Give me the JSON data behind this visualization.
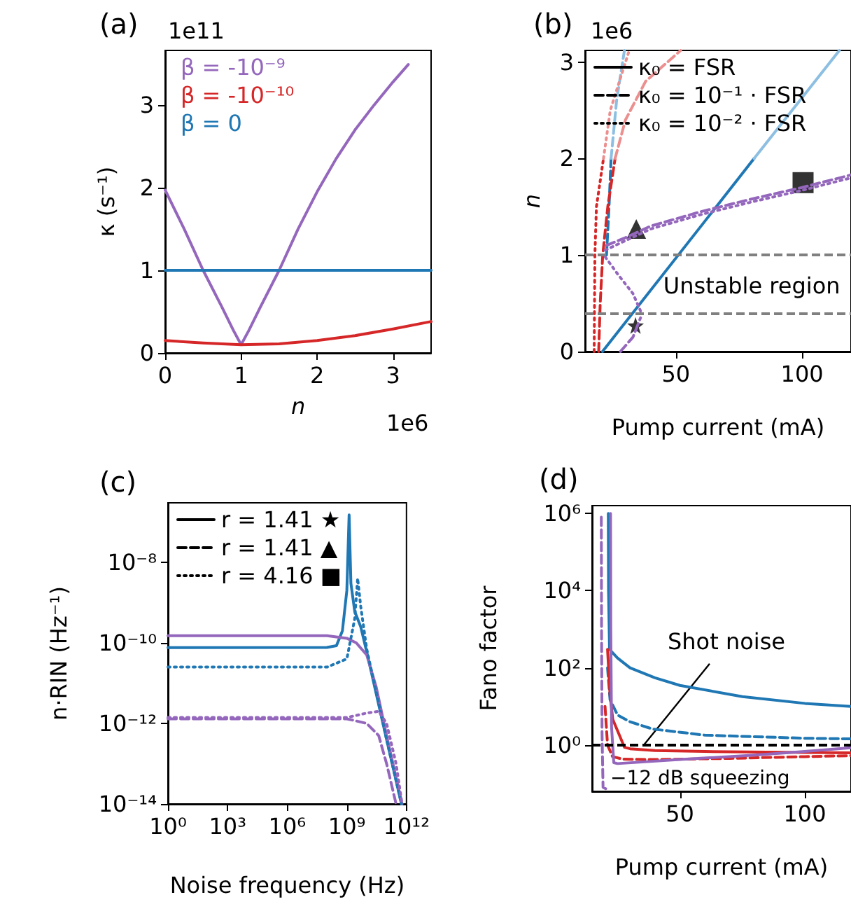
{
  "chart_data": [
    {
      "type": "line",
      "title": "(a)",
      "xlabel": "n",
      "ylabel": "κ (s⁻¹)",
      "annotations": [
        "1e11",
        "1e6"
      ],
      "xlim": [
        0,
        3.5
      ],
      "xticks": [
        0,
        1,
        2,
        3
      ],
      "ylim": [
        0,
        3.66
      ],
      "yticks": [
        0,
        1,
        2,
        3
      ],
      "legend": "top left",
      "series": [
        {
          "name": "β = -10⁻⁹",
          "color": "#9467bd",
          "x": [
            0,
            0.25,
            0.5,
            0.75,
            0.9,
            1,
            1.1,
            1.25,
            1.5,
            1.75,
            2,
            2.25,
            2.5,
            2.75,
            3,
            3.2
          ],
          "values": [
            1.97,
            1.5,
            1.0,
            0.55,
            0.27,
            0.1,
            0.27,
            0.55,
            1.0,
            1.5,
            1.95,
            2.35,
            2.7,
            3.0,
            3.28,
            3.49
          ]
        },
        {
          "name": "β = -10⁻¹⁰",
          "color": "#d62728",
          "x": [
            0,
            0.5,
            1,
            1.5,
            2,
            2.5,
            3,
            3.5
          ],
          "values": [
            0.15,
            0.12,
            0.1,
            0.11,
            0.15,
            0.21,
            0.29,
            0.38
          ]
        },
        {
          "name": "β = 0",
          "color": "#1f77b4",
          "x": [
            0,
            3.5
          ],
          "values": [
            1,
            1
          ]
        }
      ]
    },
    {
      "type": "line",
      "title": "(b)",
      "xlabel": "Pump current (mA)",
      "ylabel": "n",
      "annotations": [
        "1e6",
        {
          "text": "Unstable region",
          "x": 45,
          "y": 0.68
        }
      ],
      "xlim": [
        14,
        119.4
      ],
      "xticks": [
        50,
        100
      ],
      "ylim": [
        0,
        3.12
      ],
      "yticks": [
        0,
        1,
        2,
        3
      ],
      "legend": "top left",
      "ref_lines": [
        {
          "axis": "y",
          "value": 1,
          "label": null,
          "color": "#808080",
          "line_style": "dashed"
        },
        {
          "axis": "y",
          "value": 0.4,
          "label": null,
          "color": "#808080",
          "line_style": "dashed"
        }
      ],
      "series": [
        {
          "color": "#1f77b4",
          "line_style": "solid",
          "x": [
            20.9,
            81
          ],
          "values": [
            0,
            2
          ]
        },
        {
          "color": "#8dbfe2",
          "line_style": "solid",
          "x": [
            81,
            114.8
          ],
          "values": [
            2,
            3.12
          ]
        },
        {
          "color": "#1f77b4",
          "line_style": "dashed",
          "x": [
            22.5,
            23.5,
            24.3
          ],
          "values": [
            1,
            1.5,
            2
          ]
        },
        {
          "color": "#8dbfe2",
          "line_style": "dashed",
          "x": [
            24.3,
            26.5,
            29.6
          ],
          "values": [
            2,
            2.6,
            3.12
          ]
        },
        {
          "color": "#d62728",
          "line_style": "dashed",
          "x": [
            19.4,
            20,
            21,
            23,
            25.9
          ],
          "values": [
            0,
            0.5,
            1,
            1.5,
            2
          ]
        },
        {
          "color": "#eb8f8f",
          "line_style": "dashed",
          "x": [
            25.9,
            30,
            38,
            51.9
          ],
          "values": [
            2,
            2.4,
            2.8,
            3.12
          ]
        },
        {
          "color": "#d62728",
          "line_style": "dotted",
          "x": [
            17.6,
            17.9,
            18.5,
            21.3
          ],
          "values": [
            0,
            1,
            1.5,
            2
          ]
        },
        {
          "color": "#eb8f8f",
          "line_style": "dotted",
          "x": [
            21.3,
            24,
            31.5
          ],
          "values": [
            2,
            2.5,
            3.12
          ]
        },
        {
          "color": "#9467bd",
          "line_style": "dashed",
          "x": [
            22.5,
            30,
            40,
            60,
            80,
            100,
            119.4
          ],
          "values": [
            1.1,
            1.18,
            1.3,
            1.45,
            1.58,
            1.7,
            1.83
          ]
        },
        {
          "color": "#9467bd",
          "line_style": "dotted",
          "x": [
            22,
            30,
            40,
            60,
            80,
            100,
            119.4
          ],
          "values": [
            1.05,
            1.15,
            1.27,
            1.42,
            1.55,
            1.67,
            1.8
          ]
        },
        {
          "color": "#9467bd",
          "line_style": "dotted",
          "x": [
            22,
            27,
            33,
            36
          ],
          "values": [
            0.98,
            0.8,
            0.6,
            0.42
          ]
        },
        {
          "color": "#9467bd",
          "line_style": "dashed",
          "x": [
            28,
            33,
            36
          ],
          "values": [
            0,
            0.15,
            0.35
          ]
        },
        {
          "type": "scatter",
          "marker": "star",
          "color": "#000000",
          "x": [
            34
          ],
          "values": [
            0.27
          ]
        },
        {
          "type": "scatter",
          "marker": "triangle",
          "color": "#000000",
          "x": [
            34.3
          ],
          "values": [
            1.27
          ]
        },
        {
          "type": "scatter",
          "marker": "square",
          "color": "#000000",
          "x": [
            100.4
          ],
          "values": [
            1.75
          ]
        },
        {
          "name": "κ₀ = FSR",
          "color": "#000000",
          "line_style": "solid"
        },
        {
          "name": "κ₀ = 10⁻¹ · FSR",
          "color": "#000000",
          "line_style": "dashed"
        },
        {
          "name": "κ₀ = 10⁻² · FSR",
          "color": "#000000",
          "line_style": "dotted"
        }
      ]
    },
    {
      "type": "line",
      "title": "(c)",
      "xlabel": "Noise frequency (Hz)",
      "ylabel": "n·RIN (Hz⁻¹)",
      "log": "xy",
      "xlim": [
        1,
        1000000000000
      ],
      "xticks": [
        {
          "value": 1,
          "label": "10⁰"
        },
        {
          "value": 1000,
          "label": "10³"
        },
        {
          "value": 1000000,
          "label": "10⁶"
        },
        {
          "value": 1000000000,
          "label": "10⁹"
        },
        {
          "value": 1000000000000,
          "label": "10¹²"
        }
      ],
      "ylim": [
        1e-14,
        3e-07
      ],
      "yticks": [
        {
          "value": 1e-14,
          "label": "10⁻¹⁴"
        },
        {
          "value": 1e-12,
          "label": "10⁻¹²"
        },
        {
          "value": 1e-10,
          "label": "10⁻¹⁰"
        },
        {
          "value": 1e-08,
          "label": "10⁻⁸"
        }
      ],
      "legend": "top left",
      "series": [
        {
          "color": "#1f77b4",
          "line_style": "solid",
          "x": [
            1,
            100000000,
            300000000,
            600000000,
            1000000000,
            1300000000,
            1600000000,
            2500000000,
            5000000000,
            10000000000,
            100000000000,
            560000000000
          ],
          "values": [
            7.6e-11,
            7.7e-11,
            8.5e-11,
            2e-10,
            2e-09,
            1.5e-07,
            3e-09,
            6e-10,
            2.5e-10,
            6e-11,
            4e-13,
            1e-14
          ]
        },
        {
          "color": "#9467bd",
          "line_style": "solid",
          "x": [
            1,
            100000000,
            1000000000,
            3000000000,
            10000000000,
            30000000000,
            100000000000,
            600000000000
          ],
          "values": [
            1.5e-10,
            1.5e-10,
            1.3e-10,
            1e-10,
            5e-11,
            8e-12,
            5e-13,
            1e-14
          ]
        },
        {
          "color": "#1f77b4",
          "line_style": "dotted",
          "x": [
            1,
            100000000,
            1000000000,
            2500000000,
            3500000000,
            5000000000,
            10000000000,
            100000000000,
            560000000000
          ],
          "values": [
            2.5e-11,
            2.5e-11,
            4e-11,
            4e-10,
            4e-09,
            8e-10,
            7e-11,
            4e-13,
            1e-14
          ]
        },
        {
          "color": "#9467bd",
          "line_style": "dashed",
          "x": [
            1,
            1000000000,
            10000000000,
            40000000000,
            100000000000,
            300000000000
          ],
          "values": [
            1.3e-12,
            1.3e-12,
            1e-12,
            5e-13,
            1e-13,
            1e-14
          ]
        },
        {
          "color": "#9467bd",
          "line_style": "dotted",
          "x": [
            1,
            1000000000,
            10000000000,
            40000000000,
            100000000000,
            300000000000,
            600000000000
          ],
          "values": [
            1.4e-12,
            1.4e-12,
            1.8e-12,
            2e-12,
            1e-12,
            1e-13,
            1e-14
          ]
        },
        {
          "name": "r = 1.41 ★",
          "color": "#000000",
          "line_style": "solid"
        },
        {
          "name": "r = 1.41 ▲",
          "color": "#000000",
          "line_style": "dashed"
        },
        {
          "name": "r = 4.16 ■",
          "color": "#000000",
          "line_style": "dotted"
        }
      ]
    },
    {
      "type": "line",
      "title": "(d)",
      "xlabel": "Pump current (mA)",
      "ylabel": "Fano factor",
      "log": "y",
      "annotations": [
        "−12 dB squeezing"
      ],
      "xlim": [
        14.8,
        118.5
      ],
      "xticks": [
        50,
        100
      ],
      "ylim": [
        0.063,
        1600000
      ],
      "yticks": [
        {
          "value": 1,
          "label": "10⁰"
        },
        {
          "value": 100,
          "label": "10²"
        },
        {
          "value": 10000,
          "label": "10⁴"
        },
        {
          "value": 1000000,
          "label": "10⁶"
        }
      ],
      "ref_lines": [
        {
          "axis": "y",
          "value": 1,
          "label": "Shot noise",
          "color": "#000000",
          "line_style": "dashed"
        }
      ],
      "series": [
        {
          "color": "#1f77b4",
          "line_style": "solid",
          "x": [
            21.3,
            21.4,
            21.8,
            25,
            30,
            40,
            50,
            75,
            100,
            118.5
          ],
          "values": [
            1000000,
            10000,
            300,
            180,
            100,
            55,
            35,
            18,
            12,
            10
          ]
        },
        {
          "color": "#1f77b4",
          "line_style": "dashed",
          "x": [
            21,
            22,
            25,
            30,
            39,
            60,
            100,
            118.5
          ],
          "values": [
            100,
            15,
            6,
            4,
            2.6,
            1.8,
            1.5,
            1.44
          ]
        },
        {
          "color": "#d62728",
          "line_style": "solid",
          "x": [
            21,
            22,
            23.1,
            27.8,
            30,
            40,
            60,
            100,
            118.5
          ],
          "values": [
            300,
            20,
            4.6,
            0.87,
            0.8,
            0.72,
            0.68,
            0.64,
            0.63
          ]
        },
        {
          "color": "#d62728",
          "line_style": "dashed",
          "x": [
            20,
            21,
            23,
            27,
            40,
            70,
            100,
            118.5
          ],
          "values": [
            10,
            1,
            0.5,
            0.43,
            0.42,
            0.45,
            0.5,
            0.53
          ]
        },
        {
          "color": "#9467bd",
          "line_style": "solid",
          "x": [
            22.2,
            22.3,
            22.6,
            23.5,
            25,
            50,
            80,
            100,
            118.5
          ],
          "values": [
            1000000,
            1000,
            3,
            0.35,
            0.33,
            0.42,
            0.55,
            0.68,
            0.85
          ]
        },
        {
          "color": "#9467bd",
          "line_style": "dashed",
          "x": [
            18.5,
            18.6,
            18.8,
            19.2,
            21
          ],
          "values": [
            800000,
            1000,
            2,
            0.08,
            0.07
          ]
        }
      ]
    }
  ]
}
